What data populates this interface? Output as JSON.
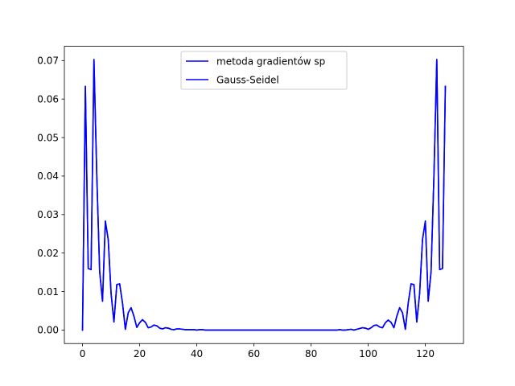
{
  "chart_data": {
    "type": "line",
    "title": "",
    "xlabel": "",
    "ylabel": "",
    "xlim": [
      -6.35,
      133.35
    ],
    "ylim": [
      -0.0035,
      0.0737
    ],
    "xticks": [
      0,
      20,
      40,
      60,
      80,
      100,
      120
    ],
    "yticks": [
      0.0,
      0.01,
      0.02,
      0.03,
      0.04,
      0.05,
      0.06,
      0.07
    ],
    "ytick_labels": [
      "0.00",
      "0.01",
      "0.02",
      "0.03",
      "0.04",
      "0.05",
      "0.06",
      "0.07"
    ],
    "grid": false,
    "legend": "upper center",
    "line_color": "#0000ff",
    "series": [
      {
        "name": "metoda gradientów sp",
        "color": "#0000ff",
        "values": [
          0.0,
          0.0633,
          0.016,
          0.0157,
          0.0703,
          0.04,
          0.0152,
          0.0075,
          0.0283,
          0.0235,
          0.0095,
          0.0021,
          0.0118,
          0.012,
          0.007,
          0.0002,
          0.0045,
          0.0058,
          0.0036,
          0.0007,
          0.0019,
          0.0027,
          0.002,
          0.0006,
          0.0008,
          0.0013,
          0.0011,
          0.0005,
          0.0003,
          0.0006,
          0.0005,
          0.0002,
          0.0001,
          0.0003,
          0.0003,
          0.0002,
          0.0001,
          0.0001,
          0.0001,
          0.0001,
          0.0,
          0.0001,
          0.0001,
          0.0,
          0.0,
          0.0,
          0.0,
          0.0,
          0.0,
          0.0,
          0.0,
          0.0,
          0.0,
          0.0,
          0.0,
          0.0,
          0.0,
          0.0,
          0.0,
          0.0,
          0.0,
          0.0,
          0.0,
          0.0,
          0.0,
          0.0,
          0.0,
          0.0,
          0.0,
          0.0,
          0.0,
          0.0,
          0.0,
          0.0,
          0.0,
          0.0,
          0.0,
          0.0,
          0.0,
          0.0,
          0.0,
          0.0,
          0.0,
          0.0,
          0.0,
          0.0,
          0.0,
          0.0,
          0.0,
          0.0,
          0.0001,
          0.0,
          0.0,
          0.0001,
          0.0002,
          0.0,
          0.0002,
          0.0004,
          0.0006,
          0.0005,
          0.0002,
          0.0006,
          0.0012,
          0.0013,
          0.0008,
          0.0006,
          0.0019,
          0.0026,
          0.002,
          0.0006,
          0.0036,
          0.0058,
          0.0045,
          0.0002,
          0.007,
          0.012,
          0.0118,
          0.0021,
          0.0095,
          0.0235,
          0.0283,
          0.0075,
          0.0152,
          0.04,
          0.0703,
          0.0157,
          0.016,
          0.0633
        ]
      },
      {
        "name": "Gauss-Seidel",
        "color": "#0000ff",
        "values": [
          0.0,
          0.0633,
          0.016,
          0.0157,
          0.0703,
          0.04,
          0.0152,
          0.0075,
          0.0283,
          0.0235,
          0.0095,
          0.0021,
          0.0118,
          0.012,
          0.007,
          0.0002,
          0.0045,
          0.0058,
          0.0036,
          0.0007,
          0.0019,
          0.0027,
          0.002,
          0.0006,
          0.0008,
          0.0013,
          0.0011,
          0.0005,
          0.0003,
          0.0006,
          0.0005,
          0.0002,
          0.0001,
          0.0003,
          0.0003,
          0.0002,
          0.0001,
          0.0001,
          0.0001,
          0.0001,
          0.0,
          0.0001,
          0.0001,
          0.0,
          0.0,
          0.0,
          0.0,
          0.0,
          0.0,
          0.0,
          0.0,
          0.0,
          0.0,
          0.0,
          0.0,
          0.0,
          0.0,
          0.0,
          0.0,
          0.0,
          0.0,
          0.0,
          0.0,
          0.0,
          0.0,
          0.0,
          0.0,
          0.0,
          0.0,
          0.0,
          0.0,
          0.0,
          0.0,
          0.0,
          0.0,
          0.0,
          0.0,
          0.0,
          0.0,
          0.0,
          0.0,
          0.0,
          0.0,
          0.0,
          0.0,
          0.0,
          0.0,
          0.0,
          0.0,
          0.0,
          0.0001,
          0.0,
          0.0,
          0.0001,
          0.0002,
          0.0,
          0.0002,
          0.0004,
          0.0006,
          0.0005,
          0.0002,
          0.0006,
          0.0012,
          0.0013,
          0.0008,
          0.0006,
          0.0019,
          0.0026,
          0.002,
          0.0006,
          0.0036,
          0.0058,
          0.0045,
          0.0002,
          0.007,
          0.012,
          0.0118,
          0.0021,
          0.0095,
          0.0235,
          0.0283,
          0.0075,
          0.0152,
          0.04,
          0.0703,
          0.0157,
          0.016,
          0.0633
        ]
      }
    ]
  }
}
